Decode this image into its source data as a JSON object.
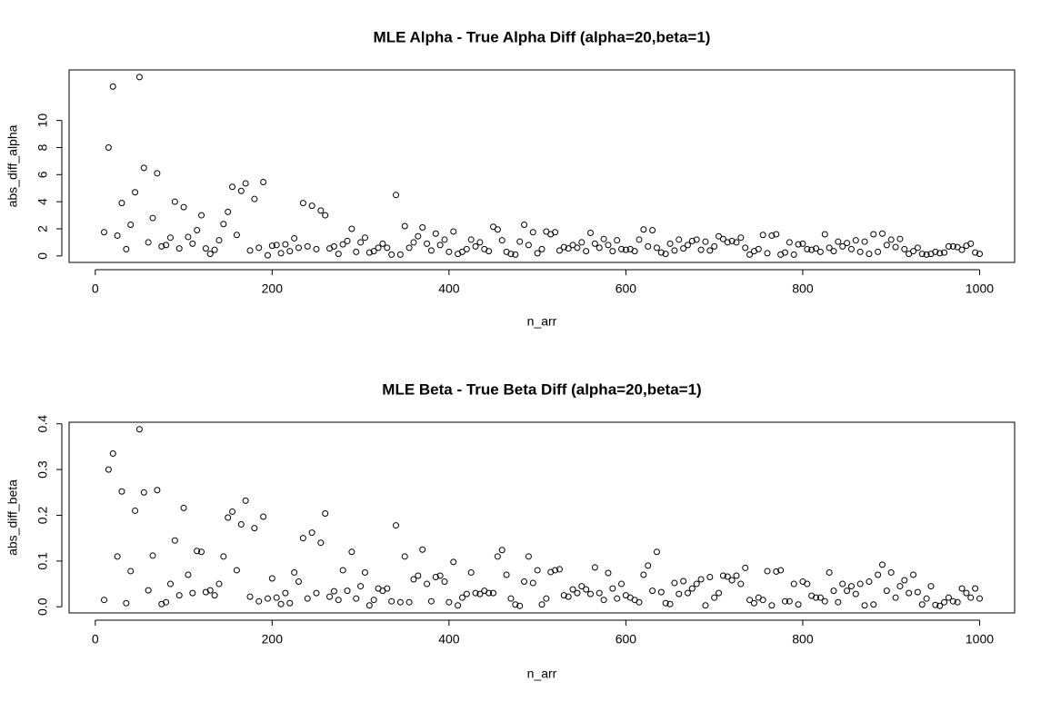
{
  "chart_data": [
    {
      "type": "scatter",
      "title": "MLE Alpha - True Alpha Diff (alpha=20,beta=1)",
      "x_label": "n_arr",
      "y_label": "abs_diff_alpha",
      "color": "#000000",
      "x": [
        10,
        15,
        20,
        25,
        30,
        35,
        40,
        45,
        50,
        55,
        60,
        65,
        70,
        75,
        80,
        85,
        90,
        95,
        100,
        105,
        110,
        115,
        120,
        125,
        130,
        135,
        140,
        145,
        150,
        155,
        160,
        165,
        170,
        175,
        180,
        185,
        190,
        195,
        200,
        205,
        210,
        215,
        220,
        225,
        230,
        235,
        240,
        245,
        250,
        255,
        260,
        265,
        270,
        275,
        280,
        285,
        290,
        295,
        300,
        305,
        310,
        315,
        320,
        325,
        330,
        335,
        340,
        345,
        350,
        355,
        360,
        365,
        370,
        375,
        380,
        385,
        390,
        395,
        400,
        405,
        410,
        415,
        420,
        425,
        430,
        435,
        440,
        445,
        450,
        455,
        460,
        465,
        470,
        475,
        480,
        485,
        490,
        495,
        500,
        505,
        510,
        515,
        520,
        525,
        530,
        535,
        540,
        545,
        550,
        555,
        560,
        565,
        570,
        575,
        580,
        585,
        590,
        595,
        600,
        605,
        610,
        615,
        620,
        625,
        630,
        635,
        640,
        645,
        650,
        655,
        660,
        665,
        670,
        675,
        680,
        685,
        690,
        695,
        700,
        705,
        710,
        715,
        720,
        725,
        730,
        735,
        740,
        745,
        750,
        755,
        760,
        765,
        770,
        775,
        780,
        785,
        790,
        795,
        800,
        805,
        810,
        815,
        820,
        825,
        830,
        835,
        840,
        845,
        850,
        855,
        860,
        865,
        870,
        875,
        880,
        885,
        890,
        895,
        900,
        905,
        910,
        915,
        920,
        925,
        930,
        935,
        940,
        945,
        950,
        955,
        960,
        965,
        970,
        975,
        980,
        985,
        990,
        995,
        1000
      ],
      "values": [
        1.75,
        8.0,
        12.5,
        1.5,
        3.9,
        0.5,
        2.3,
        4.7,
        13.2,
        6.5,
        1.0,
        2.8,
        6.1,
        0.7,
        0.8,
        1.35,
        4.0,
        0.55,
        3.6,
        1.4,
        0.9,
        1.9,
        3.0,
        0.55,
        0.15,
        0.45,
        1.15,
        2.35,
        3.25,
        5.1,
        1.55,
        4.8,
        5.35,
        0.4,
        4.2,
        0.6,
        5.45,
        0.05,
        0.75,
        0.8,
        0.2,
        0.85,
        0.35,
        1.3,
        0.6,
        3.9,
        0.7,
        3.7,
        0.5,
        3.35,
        3.0,
        0.55,
        0.7,
        0.15,
        0.85,
        1.1,
        2.0,
        0.3,
        1.0,
        1.35,
        0.25,
        0.35,
        0.6,
        0.9,
        0.6,
        0.1,
        4.5,
        0.1,
        2.2,
        0.6,
        1.0,
        1.45,
        2.1,
        0.9,
        0.4,
        1.65,
        0.8,
        1.2,
        0.3,
        1.8,
        0.15,
        0.3,
        0.5,
        1.2,
        0.7,
        1.0,
        0.5,
        0.35,
        2.15,
        1.95,
        1.15,
        0.3,
        0.15,
        0.1,
        1.05,
        2.3,
        0.8,
        1.75,
        0.2,
        0.5,
        1.8,
        1.6,
        1.75,
        0.4,
        0.65,
        0.55,
        0.8,
        0.6,
        1.0,
        0.35,
        1.7,
        0.9,
        0.6,
        1.25,
        0.8,
        0.35,
        1.15,
        0.5,
        0.45,
        0.5,
        0.35,
        1.2,
        1.95,
        0.7,
        1.9,
        0.6,
        0.25,
        0.15,
        0.9,
        0.4,
        1.2,
        0.55,
        0.8,
        1.1,
        1.2,
        0.45,
        1.05,
        0.4,
        0.7,
        1.45,
        1.25,
        1.0,
        1.1,
        1.0,
        1.35,
        0.6,
        0.1,
        0.35,
        0.5,
        1.55,
        0.2,
        1.5,
        1.6,
        0.1,
        0.25,
        1.0,
        0.1,
        0.85,
        0.9,
        0.5,
        0.45,
        0.55,
        0.3,
        1.6,
        0.6,
        0.35,
        1.05,
        0.7,
        0.95,
        0.5,
        1.15,
        0.3,
        1.05,
        0.15,
        1.6,
        0.3,
        1.65,
        0.8,
        1.2,
        0.65,
        1.25,
        0.5,
        0.15,
        0.35,
        0.6,
        0.15,
        0.1,
        0.15,
        0.3,
        0.2,
        0.25,
        0.7,
        0.7,
        0.65,
        0.45,
        0.75,
        0.9,
        0.25,
        0.15
      ],
      "xlim": [
        -29.6,
        1039.6
      ],
      "xticks": [
        0,
        200,
        400,
        600,
        800,
        1000
      ],
      "ylim": [
        -0.48,
        13.73
      ],
      "yticks": [
        0,
        2,
        4,
        6,
        8,
        10
      ]
    },
    {
      "type": "scatter",
      "title": "MLE Beta - True Beta Diff (alpha=20,beta=1)",
      "x_label": "n_arr",
      "y_label": "abs_diff_beta",
      "color": "#000000",
      "x": [
        10,
        15,
        20,
        25,
        30,
        35,
        40,
        45,
        50,
        55,
        60,
        65,
        70,
        75,
        80,
        85,
        90,
        95,
        100,
        105,
        110,
        115,
        120,
        125,
        130,
        135,
        140,
        145,
        150,
        155,
        160,
        165,
        170,
        175,
        180,
        185,
        190,
        195,
        200,
        205,
        210,
        215,
        220,
        225,
        230,
        235,
        240,
        245,
        250,
        255,
        260,
        265,
        270,
        275,
        280,
        285,
        290,
        295,
        300,
        305,
        310,
        315,
        320,
        325,
        330,
        335,
        340,
        345,
        350,
        355,
        360,
        365,
        370,
        375,
        380,
        385,
        390,
        395,
        400,
        405,
        410,
        415,
        420,
        425,
        430,
        435,
        440,
        445,
        450,
        455,
        460,
        465,
        470,
        475,
        480,
        485,
        490,
        495,
        500,
        505,
        510,
        515,
        520,
        525,
        530,
        535,
        540,
        545,
        550,
        555,
        560,
        565,
        570,
        575,
        580,
        585,
        590,
        595,
        600,
        605,
        610,
        615,
        620,
        625,
        630,
        635,
        640,
        645,
        650,
        655,
        660,
        665,
        670,
        675,
        680,
        685,
        690,
        695,
        700,
        705,
        710,
        715,
        720,
        725,
        730,
        735,
        740,
        745,
        750,
        755,
        760,
        765,
        770,
        775,
        780,
        785,
        790,
        795,
        800,
        805,
        810,
        815,
        820,
        825,
        830,
        835,
        840,
        845,
        850,
        855,
        860,
        865,
        870,
        875,
        880,
        885,
        890,
        895,
        900,
        905,
        910,
        915,
        920,
        925,
        930,
        935,
        940,
        945,
        950,
        955,
        960,
        965,
        970,
        975,
        980,
        985,
        990,
        995,
        1000
      ],
      "values": [
        0.015,
        0.3,
        0.335,
        0.11,
        0.252,
        0.008,
        0.078,
        0.21,
        0.388,
        0.25,
        0.036,
        0.112,
        0.255,
        0.006,
        0.01,
        0.05,
        0.145,
        0.025,
        0.216,
        0.07,
        0.03,
        0.122,
        0.12,
        0.032,
        0.036,
        0.025,
        0.05,
        0.11,
        0.195,
        0.208,
        0.08,
        0.18,
        0.232,
        0.022,
        0.172,
        0.012,
        0.197,
        0.018,
        0.062,
        0.02,
        0.006,
        0.03,
        0.008,
        0.075,
        0.055,
        0.15,
        0.018,
        0.162,
        0.03,
        0.14,
        0.204,
        0.022,
        0.034,
        0.015,
        0.08,
        0.035,
        0.12,
        0.018,
        0.045,
        0.075,
        0.003,
        0.015,
        0.04,
        0.035,
        0.04,
        0.012,
        0.178,
        0.01,
        0.11,
        0.01,
        0.06,
        0.068,
        0.125,
        0.05,
        0.012,
        0.065,
        0.068,
        0.055,
        0.01,
        0.098,
        0.003,
        0.02,
        0.028,
        0.075,
        0.03,
        0.028,
        0.035,
        0.03,
        0.03,
        0.11,
        0.124,
        0.07,
        0.018,
        0.005,
        0.002,
        0.055,
        0.11,
        0.052,
        0.08,
        0.005,
        0.018,
        0.076,
        0.08,
        0.082,
        0.025,
        0.022,
        0.038,
        0.03,
        0.045,
        0.038,
        0.028,
        0.086,
        0.03,
        0.015,
        0.074,
        0.04,
        0.018,
        0.05,
        0.025,
        0.02,
        0.015,
        0.01,
        0.07,
        0.09,
        0.035,
        0.12,
        0.032,
        0.008,
        0.006,
        0.052,
        0.028,
        0.056,
        0.03,
        0.04,
        0.05,
        0.06,
        0.003,
        0.065,
        0.02,
        0.03,
        0.068,
        0.066,
        0.058,
        0.068,
        0.05,
        0.085,
        0.015,
        0.008,
        0.02,
        0.015,
        0.078,
        0.003,
        0.077,
        0.08,
        0.012,
        0.012,
        0.05,
        0.005,
        0.055,
        0.05,
        0.024,
        0.02,
        0.02,
        0.012,
        0.075,
        0.035,
        0.01,
        0.05,
        0.035,
        0.045,
        0.028,
        0.05,
        0.003,
        0.055,
        0.005,
        0.07,
        0.092,
        0.035,
        0.075,
        0.02,
        0.045,
        0.058,
        0.03,
        0.07,
        0.032,
        0.005,
        0.018,
        0.045,
        0.004,
        0.002,
        0.01,
        0.02,
        0.012,
        0.01,
        0.04,
        0.03,
        0.02,
        0.04,
        0.018
      ],
      "xlim": [
        -29.6,
        1039.6
      ],
      "xticks": [
        0,
        200,
        400,
        600,
        800,
        1000
      ],
      "ylim": [
        -0.0134,
        0.4034
      ],
      "yticks": [
        {
          "value": 0,
          "label": "0.0"
        },
        0.1,
        0.2,
        0.3,
        0.4
      ]
    }
  ]
}
